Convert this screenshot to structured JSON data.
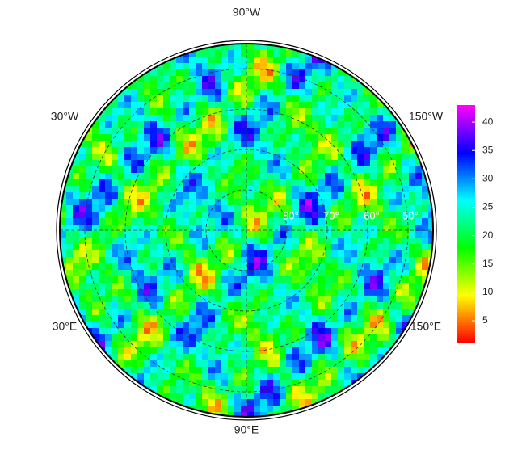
{
  "map": {
    "longitude_labels": [
      "90°W",
      "30°W",
      "150°W",
      "30°E",
      "150°E",
      "90°E"
    ],
    "latitude_labels": [
      "80°",
      "70°",
      "60°",
      "50°"
    ]
  },
  "colorbar": {
    "lim": [
      1.3,
      43
    ],
    "ticks": [
      5,
      10,
      15,
      20,
      25,
      30,
      35,
      40
    ]
  }
}
